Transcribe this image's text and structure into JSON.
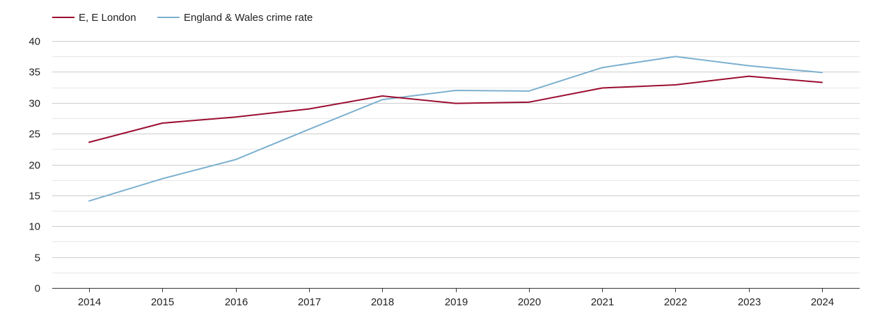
{
  "chart_data": {
    "type": "line",
    "title": "",
    "xlabel": "",
    "ylabel": "",
    "x": [
      "2014",
      "2015",
      "2016",
      "2017",
      "2018",
      "2019",
      "2020",
      "2021",
      "2022",
      "2023",
      "2024"
    ],
    "ylim": [
      0,
      40
    ],
    "yticks": [
      "0",
      "5",
      "10",
      "15",
      "20",
      "25",
      "30",
      "35",
      "40"
    ],
    "grid": true,
    "legend_position": "top-left",
    "series": [
      {
        "name": "E, E London",
        "color": "#9b0d2f",
        "values": [
          23.6,
          26.7,
          27.7,
          29.0,
          31.1,
          29.9,
          30.1,
          32.4,
          32.9,
          34.3,
          33.3
        ]
      },
      {
        "name": "England & Wales crime rate",
        "color": "#7bb0d0",
        "values": [
          14.1,
          17.7,
          20.8,
          25.7,
          30.5,
          32.0,
          31.9,
          35.7,
          37.5,
          36.0,
          34.9
        ]
      }
    ]
  }
}
